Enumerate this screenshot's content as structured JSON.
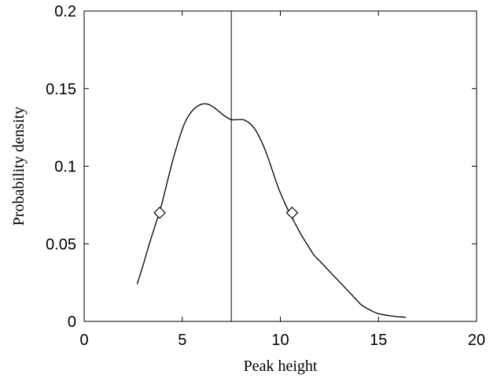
{
  "chart_data": {
    "type": "line",
    "title": "",
    "xlabel": "Peak height",
    "ylabel": "Probability density",
    "xlim": [
      0,
      20
    ],
    "ylim": [
      0,
      0.2
    ],
    "xticks": [
      0,
      5,
      10,
      15,
      20
    ],
    "xtick_labels": [
      "0",
      "5",
      "10",
      "15",
      "20"
    ],
    "yticks": [
      0,
      0.05,
      0.1,
      0.15,
      0.2
    ],
    "ytick_labels": [
      "0",
      "0.05",
      "0.1",
      "0.15",
      "0.2"
    ],
    "grid": false,
    "legend": "none",
    "line_color": "#000000",
    "series": [
      {
        "x": [
          2.7,
          3.0,
          3.3,
          3.6,
          3.9,
          4.2,
          4.5,
          4.8,
          5.1,
          5.4,
          5.7,
          6.0,
          6.3,
          6.6,
          6.9,
          7.2,
          7.5,
          7.8,
          8.1,
          8.4,
          8.7,
          9.0,
          9.3,
          9.6,
          9.9,
          10.2,
          10.5,
          10.8,
          11.1,
          11.4,
          11.7,
          12.0,
          12.3,
          12.6,
          12.9,
          13.2,
          13.5,
          13.8,
          14.1,
          14.4,
          14.7,
          15.0,
          15.3,
          15.6,
          15.9,
          16.4
        ],
        "y": [
          0.024,
          0.036,
          0.049,
          0.061,
          0.073,
          0.088,
          0.103,
          0.116,
          0.127,
          0.134,
          0.138,
          0.14,
          0.14,
          0.138,
          0.135,
          0.132,
          0.13,
          0.13,
          0.13,
          0.128,
          0.124,
          0.117,
          0.108,
          0.097,
          0.086,
          0.077,
          0.069,
          0.062,
          0.055,
          0.049,
          0.043,
          0.039,
          0.035,
          0.031,
          0.027,
          0.023,
          0.019,
          0.015,
          0.011,
          0.0085,
          0.0065,
          0.005,
          0.0042,
          0.0036,
          0.0031,
          0.0027
        ]
      }
    ],
    "vertical_line": {
      "x": 7.5
    },
    "markers": [
      {
        "shape": "diamond",
        "x": 3.85,
        "y": 0.07
      },
      {
        "shape": "diamond",
        "x": 10.6,
        "y": 0.07
      }
    ]
  }
}
